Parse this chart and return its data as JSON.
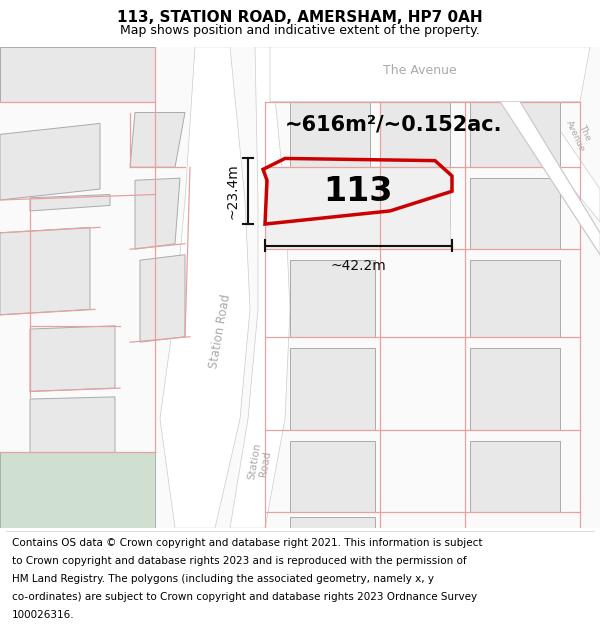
{
  "title": "113, STATION ROAD, AMERSHAM, HP7 0AH",
  "subtitle": "Map shows position and indicative extent of the property.",
  "footer_lines": [
    "Contains OS data © Crown copyright and database right 2021. This information is subject",
    "to Crown copyright and database rights 2023 and is reproduced with the permission of",
    "HM Land Registry. The polygons (including the associated geometry, namely x, y",
    "co-ordinates) are subject to Crown copyright and database rights 2023 Ordnance Survey",
    "100026316."
  ],
  "area_label": "~616m²/~0.152ac.",
  "number_label": "113",
  "width_label": "~42.2m",
  "height_label": "~23.4m",
  "map_bg": "#fafafa",
  "road_fill": "#ffffff",
  "road_stroke": "#cccccc",
  "building_fill": "#e8e8e8",
  "building_stroke": "#aaaaaa",
  "pink_color": "#e8a0a0",
  "red_color": "#cc0000",
  "measure_color": "#111111",
  "road_label_color": "#aaaaaa",
  "title_fontsize": 11,
  "subtitle_fontsize": 9,
  "footer_fontsize": 7.5,
  "area_fontsize": 15,
  "number_fontsize": 24,
  "measure_fontsize": 10,
  "road_label_fontsize": 8.5
}
